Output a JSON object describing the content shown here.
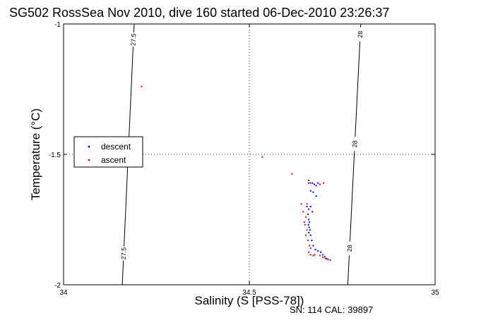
{
  "chart_data": {
    "type": "scatter",
    "title": "SG502 RossSea Nov 2010, dive 160 started 06-Dec-2010 23:26:37",
    "xlabel": "Salinity (S [PSS-78])",
    "ylabel": "Temperature (°C)",
    "xlim": [
      34,
      35
    ],
    "ylim": [
      -2,
      -1
    ],
    "xticks": [
      34,
      34.5,
      35
    ],
    "yticks": [
      -2,
      -1.5,
      -1
    ],
    "xtick_labels": [
      "34",
      "34.5",
      "35"
    ],
    "ytick_labels": [
      "-2",
      "-1.5",
      "-1"
    ],
    "grid": true,
    "legend": {
      "placement": "left-middle",
      "entries": [
        "descent",
        "ascent"
      ]
    },
    "contours": [
      {
        "label": "27.5",
        "points": [
          [
            34.158,
            -2.0
          ],
          [
            34.19,
            -1.0
          ]
        ],
        "label_at": [
          -1.06,
          -1.88
        ]
      },
      {
        "label": "28",
        "points": [
          [
            34.765,
            -2.0
          ],
          [
            34.8,
            -1.0
          ]
        ],
        "label_at": [
          -1.04,
          -1.46,
          -1.86
        ]
      }
    ],
    "series": [
      {
        "name": "descent",
        "color": "#0000ff",
        "points": [
          [
            34.66,
            -1.61
          ],
          [
            34.67,
            -1.61
          ],
          [
            34.675,
            -1.615
          ],
          [
            34.68,
            -1.62
          ],
          [
            34.685,
            -1.61
          ],
          [
            34.665,
            -1.64
          ],
          [
            34.672,
            -1.645
          ],
          [
            34.68,
            -1.66
          ],
          [
            34.655,
            -1.7
          ],
          [
            34.66,
            -1.71
          ],
          [
            34.665,
            -1.7
          ],
          [
            34.67,
            -1.72
          ],
          [
            34.658,
            -1.73
          ],
          [
            34.66,
            -1.75
          ],
          [
            34.662,
            -1.76
          ],
          [
            34.659,
            -1.77
          ],
          [
            34.661,
            -1.78
          ],
          [
            34.663,
            -1.79
          ],
          [
            34.66,
            -1.8
          ],
          [
            34.665,
            -1.81
          ],
          [
            34.668,
            -1.83
          ],
          [
            34.672,
            -1.85
          ],
          [
            34.678,
            -1.865
          ],
          [
            34.685,
            -1.87
          ],
          [
            34.692,
            -1.875
          ],
          [
            34.698,
            -1.885
          ],
          [
            34.703,
            -1.893
          ],
          [
            34.708,
            -1.9
          ],
          [
            34.712,
            -1.903
          ]
        ]
      },
      {
        "name": "ascent",
        "color": "#ff0000",
        "points": [
          [
            34.21,
            -1.24
          ],
          [
            34.535,
            -1.51
          ],
          [
            34.615,
            -1.575
          ],
          [
            34.66,
            -1.6
          ],
          [
            34.665,
            -1.61
          ],
          [
            34.69,
            -1.615
          ],
          [
            34.7,
            -1.61
          ],
          [
            34.64,
            -1.69
          ],
          [
            34.655,
            -1.69
          ],
          [
            34.645,
            -1.72
          ],
          [
            34.652,
            -1.74
          ],
          [
            34.648,
            -1.76
          ],
          [
            34.65,
            -1.77
          ],
          [
            34.655,
            -1.79
          ],
          [
            34.652,
            -1.81
          ],
          [
            34.658,
            -1.83
          ],
          [
            34.662,
            -1.85
          ],
          [
            34.665,
            -1.86
          ],
          [
            34.66,
            -1.875
          ],
          [
            34.665,
            -1.885
          ],
          [
            34.672,
            -1.888
          ],
          [
            34.676,
            -1.885
          ],
          [
            34.69,
            -1.888
          ],
          [
            34.698,
            -1.895
          ],
          [
            34.705,
            -1.9
          ],
          [
            34.712,
            -1.903
          ],
          [
            34.718,
            -1.905
          ]
        ]
      }
    ]
  },
  "footer": {
    "sn_cal": "SN: 114  CAL: 39897"
  }
}
